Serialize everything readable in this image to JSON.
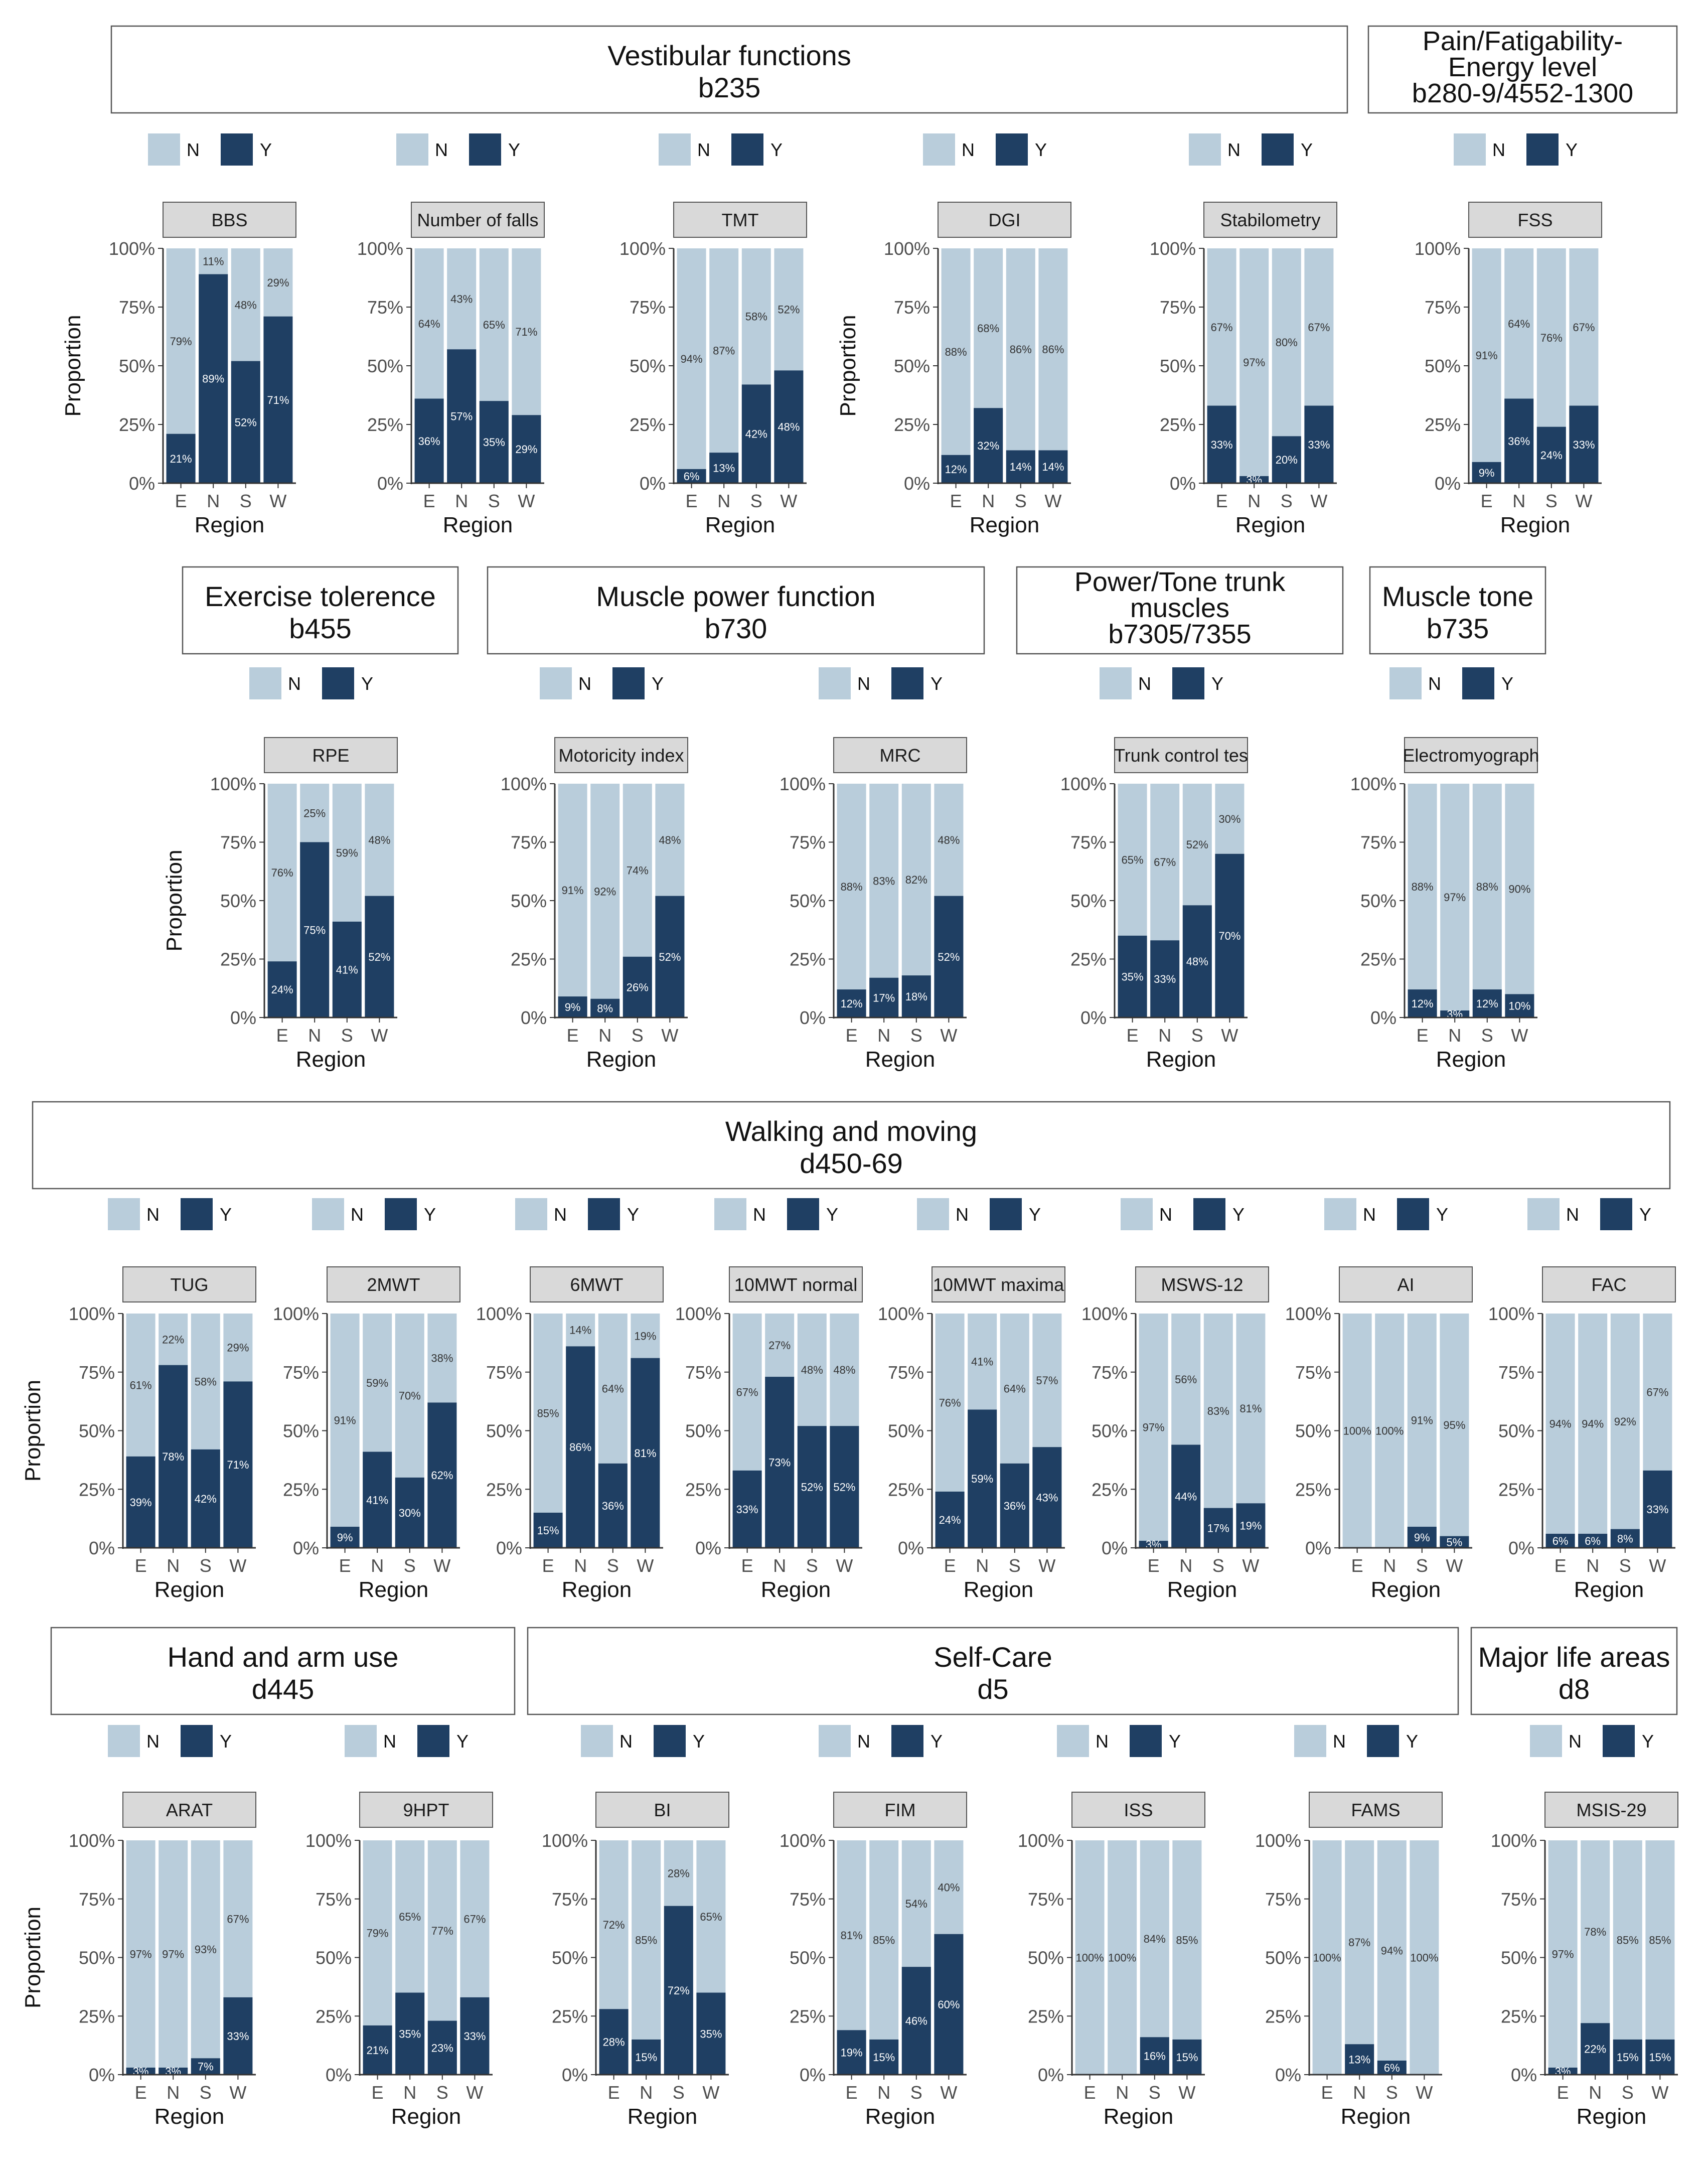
{
  "colors": {
    "N": "#b9cddb",
    "Y": "#1f3f63",
    "strip": "#d9d9d9",
    "axis": "#333333",
    "textDark": "#333333",
    "labelOnLight": "#333333",
    "labelOnDark": "#ffffff"
  },
  "axis": {
    "yticks": [
      "0%",
      "25%",
      "50%",
      "75%",
      "100%"
    ],
    "xlabel": "Region",
    "ylabel": "Proportion",
    "categories": [
      "E",
      "N",
      "S",
      "W"
    ]
  },
  "legend": {
    "labels": [
      "N",
      "Y"
    ]
  },
  "sections": [
    {
      "title": "Vestibular functions",
      "code": "b235"
    },
    {
      "title": "Pain/Fatigability-Energy level",
      "lines": [
        "Pain/Fatigability-",
        "Energy level",
        "b280-9/4552-1300"
      ]
    },
    {
      "title": "Exercise tolerence",
      "code": "b455"
    },
    {
      "title": "Muscle power function",
      "code": "b730"
    },
    {
      "title": "Power/Tone trunk muscles",
      "lines": [
        "Power/Tone trunk",
        "muscles",
        "b7305/7355"
      ]
    },
    {
      "title": "Muscle tone",
      "code": "b735"
    },
    {
      "title": "Walking and moving",
      "code": "d450-69"
    },
    {
      "title": "Hand and arm use",
      "code": "d445"
    },
    {
      "title": "Self-Care",
      "code": "d5"
    },
    {
      "title": "Major life areas",
      "code": "d8"
    }
  ],
  "chart_data": [
    {
      "type": "bar",
      "title": "BBS",
      "categories": [
        "E",
        "N",
        "S",
        "W"
      ],
      "series": [
        {
          "name": "Y",
          "values": [
            21,
            89,
            52,
            71
          ]
        },
        {
          "name": "N",
          "values": [
            79,
            11,
            48,
            29
          ]
        }
      ],
      "ylabel": "Proportion",
      "xlabel": "Region"
    },
    {
      "type": "bar",
      "title": "Number of falls",
      "categories": [
        "E",
        "N",
        "S",
        "W"
      ],
      "series": [
        {
          "name": "Y",
          "values": [
            36,
            57,
            35,
            29
          ]
        },
        {
          "name": "N",
          "values": [
            64,
            43,
            65,
            71
          ]
        }
      ],
      "xlabel": "Region"
    },
    {
      "type": "bar",
      "title": "TMT",
      "categories": [
        "E",
        "N",
        "S",
        "W"
      ],
      "series": [
        {
          "name": "Y",
          "values": [
            6,
            13,
            42,
            48
          ]
        },
        {
          "name": "N",
          "values": [
            94,
            87,
            58,
            52
          ]
        }
      ],
      "xlabel": "Region"
    },
    {
      "type": "bar",
      "title": "DGI",
      "categories": [
        "E",
        "N",
        "S",
        "W"
      ],
      "series": [
        {
          "name": "Y",
          "values": [
            12,
            32,
            14,
            14
          ]
        },
        {
          "name": "N",
          "values": [
            88,
            68,
            86,
            86
          ]
        }
      ],
      "ylabel": "Proportion",
      "xlabel": "Region"
    },
    {
      "type": "bar",
      "title": "Stabilometry",
      "categories": [
        "E",
        "N",
        "S",
        "W"
      ],
      "series": [
        {
          "name": "Y",
          "values": [
            33,
            3,
            20,
            33
          ]
        },
        {
          "name": "N",
          "values": [
            67,
            97,
            80,
            67
          ]
        }
      ],
      "xlabel": "Region"
    },
    {
      "type": "bar",
      "title": "FSS",
      "categories": [
        "E",
        "N",
        "S",
        "W"
      ],
      "series": [
        {
          "name": "Y",
          "values": [
            9,
            36,
            24,
            33
          ]
        },
        {
          "name": "N",
          "values": [
            91,
            64,
            76,
            67
          ]
        }
      ],
      "xlabel": "Region"
    },
    {
      "type": "bar",
      "title": "RPE",
      "categories": [
        "E",
        "N",
        "S",
        "W"
      ],
      "series": [
        {
          "name": "Y",
          "values": [
            24,
            75,
            41,
            52
          ]
        },
        {
          "name": "N",
          "values": [
            76,
            25,
            59,
            48
          ]
        }
      ],
      "ylabel": "Proportion",
      "xlabel": "Region"
    },
    {
      "type": "bar",
      "title": "Motoricity index",
      "categories": [
        "E",
        "N",
        "S",
        "W"
      ],
      "series": [
        {
          "name": "Y",
          "values": [
            9,
            8,
            26,
            52
          ]
        },
        {
          "name": "N",
          "values": [
            91,
            92,
            74,
            48
          ]
        }
      ],
      "xlabel": "Region"
    },
    {
      "type": "bar",
      "title": "MRC",
      "categories": [
        "E",
        "N",
        "S",
        "W"
      ],
      "series": [
        {
          "name": "Y",
          "values": [
            12,
            17,
            18,
            52
          ]
        },
        {
          "name": "N",
          "values": [
            88,
            83,
            82,
            48
          ]
        }
      ],
      "xlabel": "Region"
    },
    {
      "type": "bar",
      "title": "Trunk control tes",
      "categories": [
        "E",
        "N",
        "S",
        "W"
      ],
      "series": [
        {
          "name": "Y",
          "values": [
            35,
            33,
            48,
            70
          ]
        },
        {
          "name": "N",
          "values": [
            65,
            67,
            52,
            30
          ]
        }
      ],
      "xlabel": "Region"
    },
    {
      "type": "bar",
      "title": "Electromyograph",
      "categories": [
        "E",
        "N",
        "S",
        "W"
      ],
      "series": [
        {
          "name": "Y",
          "values": [
            12,
            3,
            12,
            10
          ]
        },
        {
          "name": "N",
          "values": [
            88,
            97,
            88,
            90
          ]
        }
      ],
      "xlabel": "Region"
    },
    {
      "type": "bar",
      "title": "TUG",
      "categories": [
        "E",
        "N",
        "S",
        "W"
      ],
      "series": [
        {
          "name": "Y",
          "values": [
            39,
            78,
            42,
            71
          ]
        },
        {
          "name": "N",
          "values": [
            61,
            22,
            58,
            29
          ]
        }
      ],
      "ylabel": "Proportion",
      "xlabel": "Region"
    },
    {
      "type": "bar",
      "title": "2MWT",
      "categories": [
        "E",
        "N",
        "S",
        "W"
      ],
      "series": [
        {
          "name": "Y",
          "values": [
            9,
            41,
            30,
            62
          ]
        },
        {
          "name": "N",
          "values": [
            91,
            59,
            70,
            38
          ]
        }
      ],
      "xlabel": "Region"
    },
    {
      "type": "bar",
      "title": "6MWT",
      "categories": [
        "E",
        "N",
        "S",
        "W"
      ],
      "series": [
        {
          "name": "Y",
          "values": [
            15,
            86,
            36,
            81
          ]
        },
        {
          "name": "N",
          "values": [
            85,
            14,
            64,
            19
          ]
        }
      ],
      "xlabel": "Region"
    },
    {
      "type": "bar",
      "title": "10MWT normal",
      "categories": [
        "E",
        "N",
        "S",
        "W"
      ],
      "series": [
        {
          "name": "Y",
          "values": [
            33,
            73,
            52,
            52
          ]
        },
        {
          "name": "N",
          "values": [
            67,
            27,
            48,
            48
          ]
        }
      ],
      "xlabel": "Region"
    },
    {
      "type": "bar",
      "title": "10MWT maxima",
      "categories": [
        "E",
        "N",
        "S",
        "W"
      ],
      "series": [
        {
          "name": "Y",
          "values": [
            24,
            59,
            36,
            43
          ]
        },
        {
          "name": "N",
          "values": [
            76,
            41,
            64,
            57
          ]
        }
      ],
      "xlabel": "Region"
    },
    {
      "type": "bar",
      "title": "MSWS-12",
      "categories": [
        "E",
        "N",
        "S",
        "W"
      ],
      "series": [
        {
          "name": "Y",
          "values": [
            3,
            44,
            17,
            19
          ]
        },
        {
          "name": "N",
          "values": [
            97,
            56,
            83,
            81
          ]
        }
      ],
      "xlabel": "Region"
    },
    {
      "type": "bar",
      "title": "AI",
      "categories": [
        "E",
        "N",
        "S",
        "W"
      ],
      "series": [
        {
          "name": "Y",
          "values": [
            0,
            0,
            9,
            5
          ]
        },
        {
          "name": "N",
          "values": [
            100,
            100,
            91,
            95
          ]
        }
      ],
      "xlabel": "Region"
    },
    {
      "type": "bar",
      "title": "FAC",
      "categories": [
        "E",
        "N",
        "S",
        "W"
      ],
      "series": [
        {
          "name": "Y",
          "values": [
            6,
            6,
            8,
            33
          ]
        },
        {
          "name": "N",
          "values": [
            94,
            94,
            92,
            67
          ]
        }
      ],
      "xlabel": "Region"
    },
    {
      "type": "bar",
      "title": "ARAT",
      "categories": [
        "E",
        "N",
        "S",
        "W"
      ],
      "series": [
        {
          "name": "Y",
          "values": [
            3,
            3,
            7,
            33
          ]
        },
        {
          "name": "N",
          "values": [
            97,
            97,
            93,
            67
          ]
        }
      ],
      "ylabel": "Proportion",
      "xlabel": "Region"
    },
    {
      "type": "bar",
      "title": "9HPT",
      "categories": [
        "E",
        "N",
        "S",
        "W"
      ],
      "series": [
        {
          "name": "Y",
          "values": [
            21,
            35,
            23,
            33
          ]
        },
        {
          "name": "N",
          "values": [
            79,
            65,
            77,
            67
          ]
        }
      ],
      "xlabel": "Region"
    },
    {
      "type": "bar",
      "title": "BI",
      "categories": [
        "E",
        "N",
        "S",
        "W"
      ],
      "series": [
        {
          "name": "Y",
          "values": [
            28,
            15,
            72,
            35
          ]
        },
        {
          "name": "N",
          "values": [
            72,
            85,
            28,
            65
          ]
        }
      ],
      "xlabel": "Region"
    },
    {
      "type": "bar",
      "title": "FIM",
      "categories": [
        "E",
        "N",
        "S",
        "W"
      ],
      "series": [
        {
          "name": "Y",
          "values": [
            19,
            15,
            46,
            60
          ]
        },
        {
          "name": "N",
          "values": [
            81,
            85,
            54,
            40
          ]
        }
      ],
      "xlabel": "Region"
    },
    {
      "type": "bar",
      "title": "ISS",
      "categories": [
        "E",
        "N",
        "S",
        "W"
      ],
      "series": [
        {
          "name": "Y",
          "values": [
            0,
            0,
            16,
            15
          ]
        },
        {
          "name": "N",
          "values": [
            100,
            100,
            84,
            85
          ]
        }
      ],
      "xlabel": "Region"
    },
    {
      "type": "bar",
      "title": "FAMS",
      "categories": [
        "E",
        "N",
        "S",
        "W"
      ],
      "series": [
        {
          "name": "Y",
          "values": [
            0,
            13,
            6,
            0
          ]
        },
        {
          "name": "N",
          "values": [
            100,
            87,
            94,
            100
          ]
        }
      ],
      "xlabel": "Region"
    },
    {
      "type": "bar",
      "title": "MSIS-29",
      "categories": [
        "E",
        "N",
        "S",
        "W"
      ],
      "series": [
        {
          "name": "Y",
          "values": [
            3,
            22,
            15,
            15
          ]
        },
        {
          "name": "N",
          "values": [
            97,
            78,
            85,
            85
          ]
        }
      ],
      "xlabel": "Region"
    }
  ]
}
